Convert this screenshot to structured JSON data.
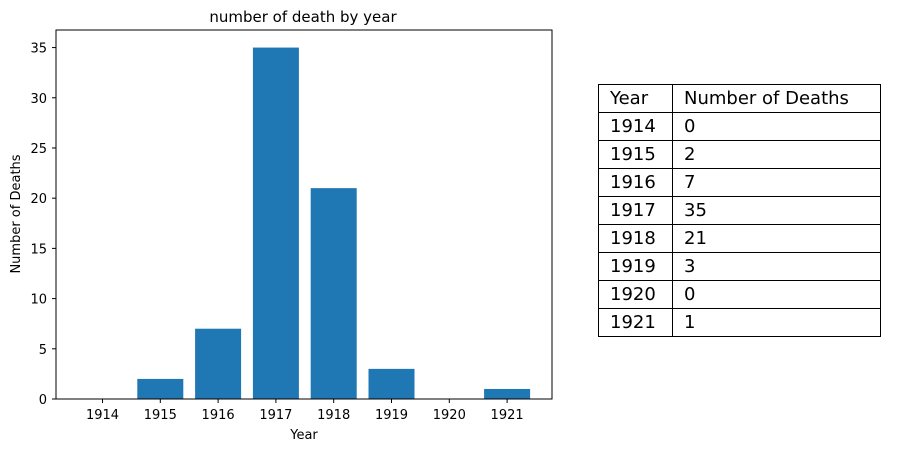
{
  "chart_data": {
    "type": "bar",
    "title": "number of death by year",
    "xlabel": "Year",
    "ylabel": "Number of Deaths",
    "categories": [
      "1914",
      "1915",
      "1916",
      "1917",
      "1918",
      "1919",
      "1920",
      "1921"
    ],
    "values": [
      0,
      2,
      7,
      35,
      21,
      3,
      0,
      1
    ],
    "ylim": [
      0,
      36.75
    ],
    "yticks": [
      0,
      5,
      10,
      15,
      20,
      25,
      30,
      35
    ],
    "color": "#1f77b4",
    "grid": false
  },
  "table": {
    "headers": [
      "Year",
      "Number of Deaths"
    ],
    "rows": [
      [
        "1914",
        "0"
      ],
      [
        "1915",
        "2"
      ],
      [
        "1916",
        "7"
      ],
      [
        "1917",
        "35"
      ],
      [
        "1918",
        "21"
      ],
      [
        "1919",
        "3"
      ],
      [
        "1920",
        "0"
      ],
      [
        "1921",
        "1"
      ]
    ]
  }
}
